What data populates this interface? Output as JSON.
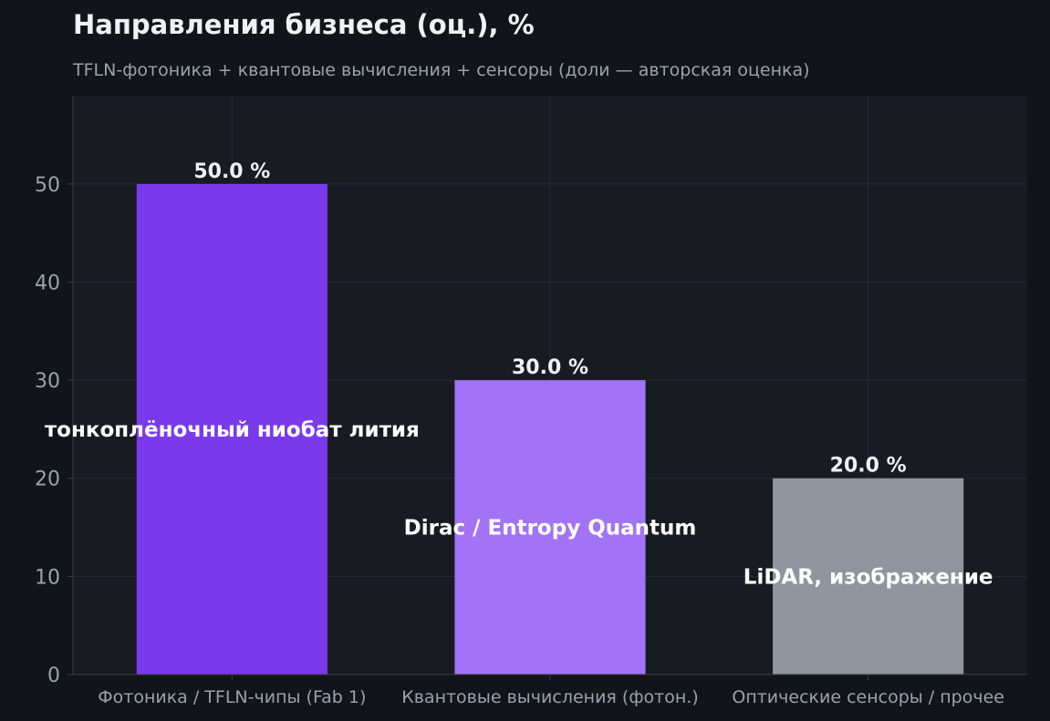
{
  "chart_data": {
    "type": "bar",
    "title": "Направления бизнеса (оц.), %",
    "subtitle": "TFLN-фотоника + квантовые вычисления + сенсоры (доли — авторская оценка)",
    "categories": [
      "Фотоника / TFLN-чипы (Fab 1)",
      "Квантовые вычисления (фотон.)",
      "Оптические сенсоры / прочее"
    ],
    "values": [
      50.0,
      30.0,
      20.0
    ],
    "value_labels": [
      "50.0 %",
      "30.0 %",
      "20.0 %"
    ],
    "inner_labels": [
      "тонкоплёночный ниобат лития",
      "Dirac / Entropy Quantum",
      "LiDAR, изображение"
    ],
    "colors": [
      "#7a3aec",
      "#a273f5",
      "#8e959f"
    ],
    "ylim": [
      0,
      59
    ],
    "yticks": [
      0,
      10,
      20,
      30,
      40,
      50
    ],
    "xlabel": "",
    "ylabel": "",
    "grid": true,
    "legend": "none"
  },
  "theme": {
    "background": "#111418",
    "plot_background": "#181b22",
    "grid_color": "#262a33",
    "tick_color": "#9aa2ad",
    "value_label_color": "#eef1f5",
    "inner_label_color": "#ffffff"
  }
}
